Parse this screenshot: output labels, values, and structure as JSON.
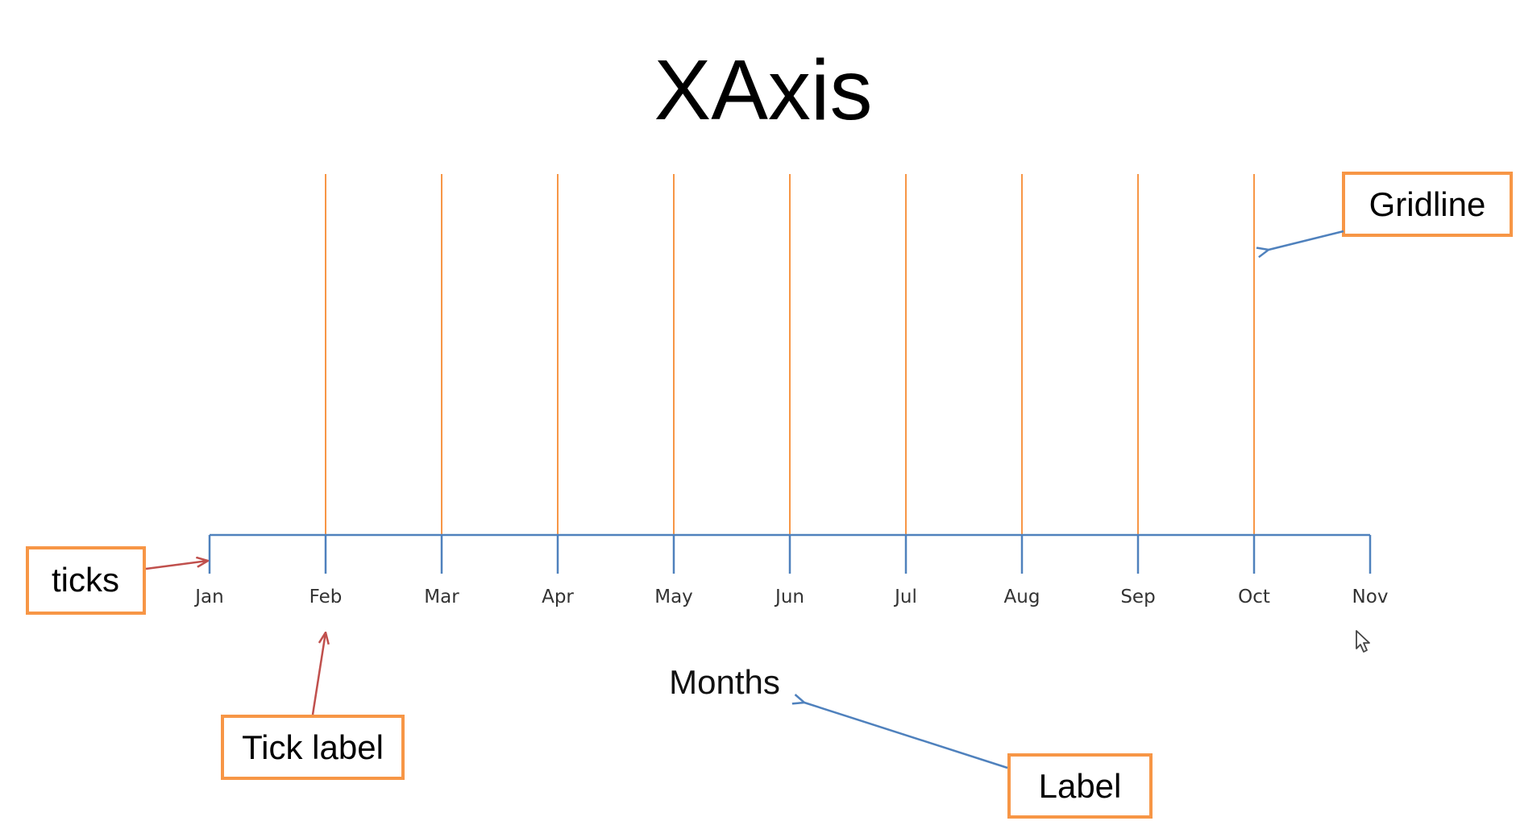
{
  "title": "XAxis",
  "axis": {
    "tick_labels": [
      "Jan",
      "Feb",
      "Mar",
      "Apr",
      "May",
      "Jun",
      "Jul",
      "Aug",
      "Sep",
      "Oct",
      "Nov"
    ],
    "label": "Months",
    "axis_color": "#4f81bd",
    "gridline_color": "#f79646",
    "gridlines": true
  },
  "callouts": {
    "gridline": "Gridline",
    "ticks": "ticks",
    "tick_label": "Tick label",
    "label": "Label",
    "box_color": "#f79646",
    "blue_arrow_color": "#4f81bd",
    "red_arrow_color": "#c0504d"
  },
  "cursor": "mouse-pointer-icon"
}
